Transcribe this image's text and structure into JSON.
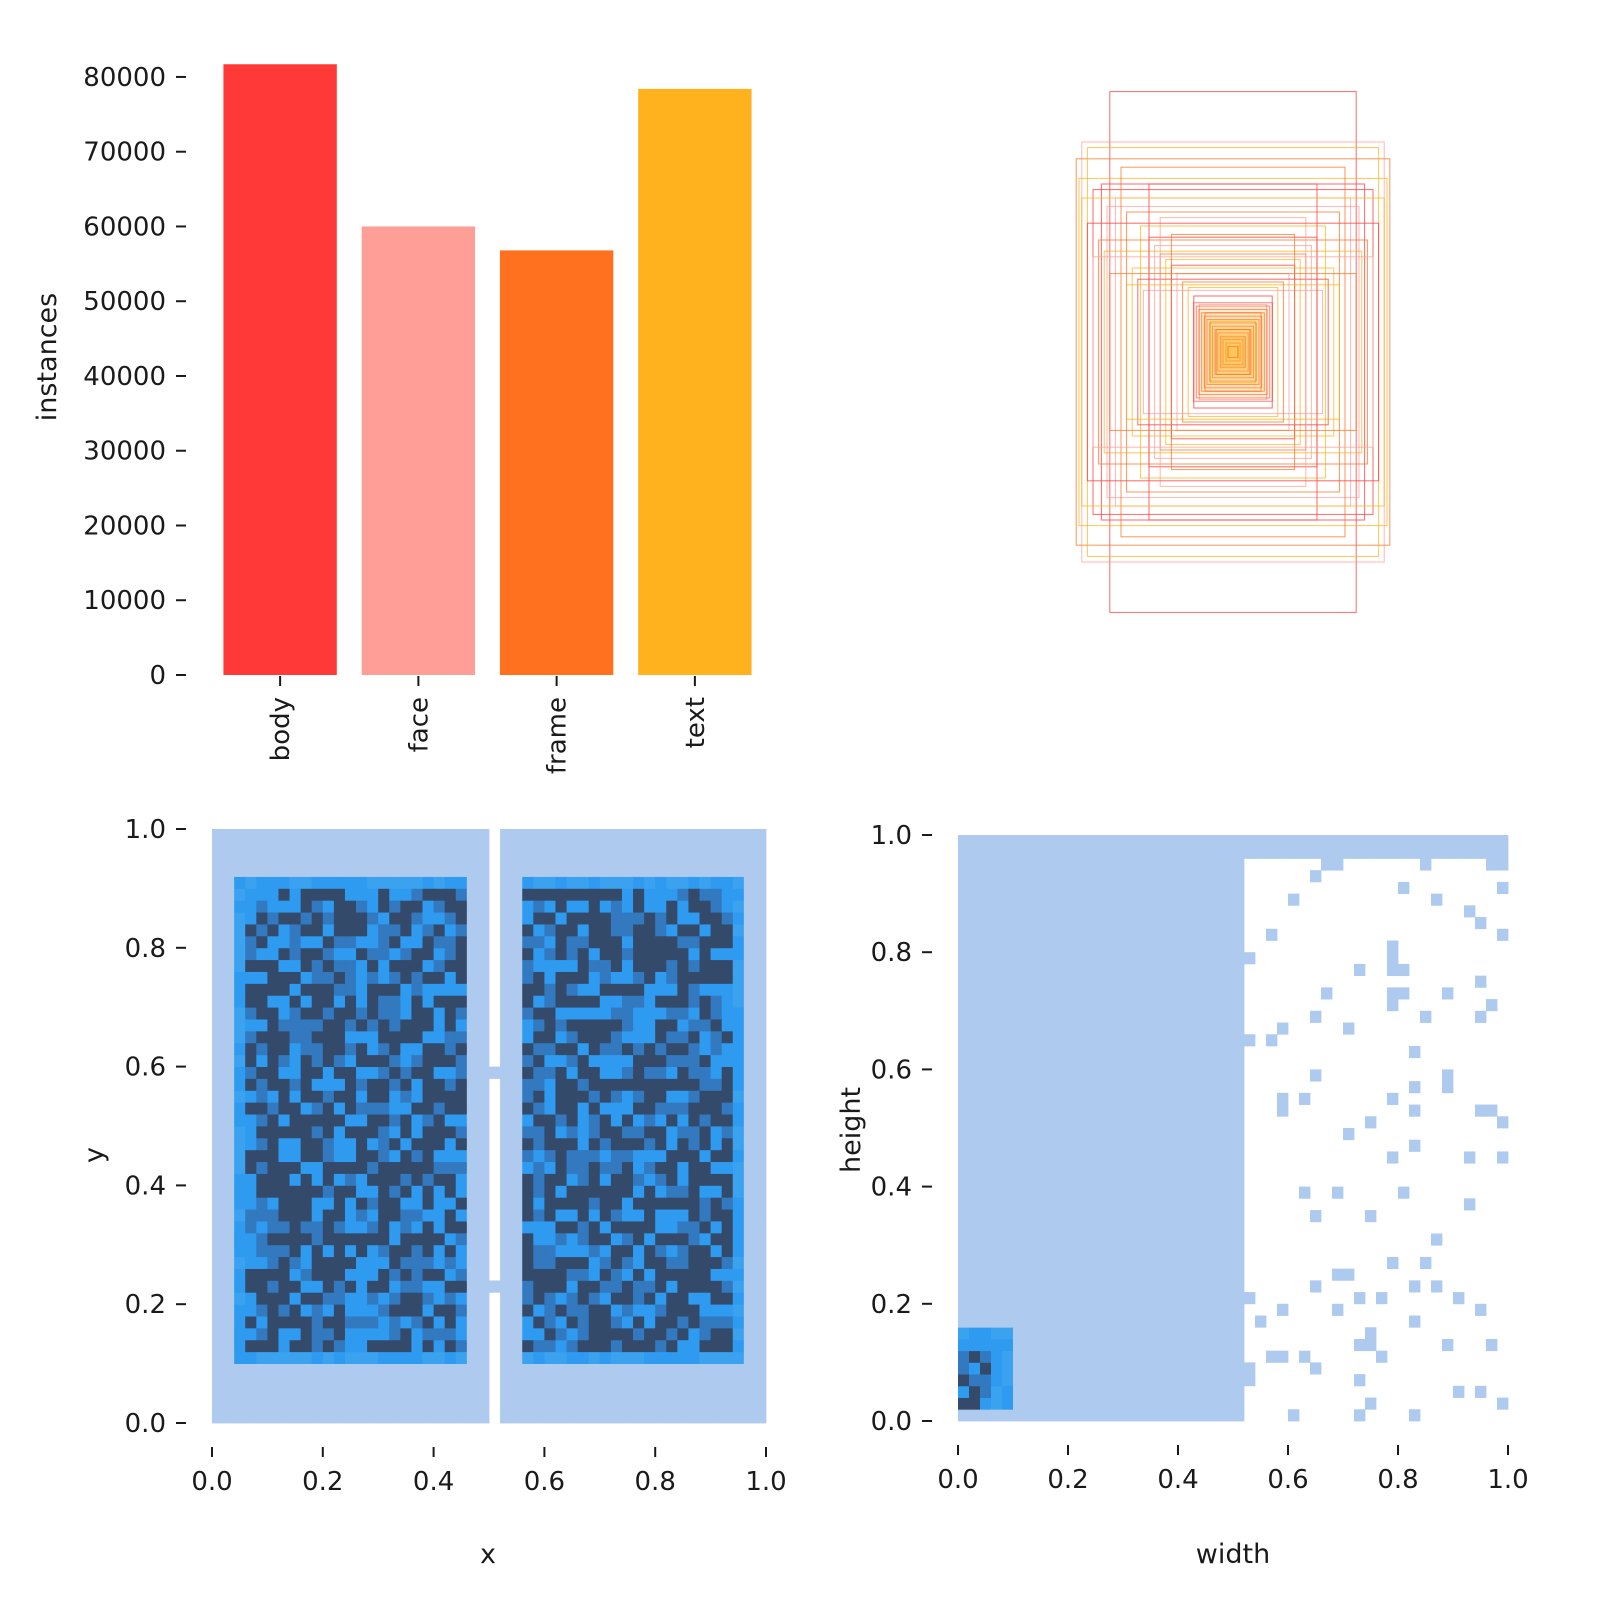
{
  "chart_data": [
    {
      "id": "instances",
      "type": "bar",
      "categories": [
        "body",
        "face",
        "frame",
        "text"
      ],
      "values": [
        81700,
        60000,
        56800,
        78400
      ],
      "colors": [
        "#FF3838",
        "#FF9D97",
        "#FF701F",
        "#FFB21D"
      ],
      "xlabel": "",
      "ylabel": "instances",
      "ylim": [
        0,
        82000
      ],
      "yticks": [
        0,
        10000,
        20000,
        30000,
        40000,
        50000,
        60000,
        70000,
        80000
      ],
      "ytick_labels": [
        "0",
        "10000",
        "20000",
        "30000",
        "40000",
        "50000",
        "60000",
        "70000",
        "80000"
      ],
      "grid": false
    },
    {
      "id": "box-overlay",
      "type": "scatter",
      "description_of_marks": "overlaid centered bounding rectangles (width, height) in class colors",
      "boxes": [
        [
          0.44,
          0.93
        ],
        [
          0.54,
          0.75
        ],
        [
          0.56,
          0.69
        ],
        [
          0.52,
          0.73
        ],
        [
          0.47,
          0.6
        ],
        [
          0.42,
          0.55
        ],
        [
          0.38,
          0.5
        ],
        [
          0.33,
          0.45
        ],
        [
          0.3,
          0.41
        ],
        [
          0.28,
          0.38
        ],
        [
          0.26,
          0.35
        ],
        [
          0.24,
          0.33
        ],
        [
          0.22,
          0.31
        ],
        [
          0.2,
          0.28
        ],
        [
          0.18,
          0.25
        ],
        [
          0.16,
          0.23
        ],
        [
          0.14,
          0.2
        ],
        [
          0.12,
          0.17
        ],
        [
          0.1,
          0.14
        ],
        [
          0.08,
          0.11
        ],
        [
          0.06,
          0.08
        ],
        [
          0.04,
          0.05
        ],
        [
          0.02,
          0.02
        ],
        [
          0.55,
          0.62
        ],
        [
          0.5,
          0.58
        ],
        [
          0.45,
          0.52
        ],
        [
          0.4,
          0.66
        ],
        [
          0.36,
          0.3
        ],
        [
          0.34,
          0.26
        ],
        [
          0.32,
          0.22
        ],
        [
          0.48,
          0.4
        ],
        [
          0.46,
          0.36
        ],
        [
          0.3,
          0.6
        ],
        [
          0.26,
          0.48
        ],
        [
          0.22,
          0.42
        ],
        [
          0.54,
          0.55
        ],
        [
          0.52,
          0.46
        ],
        [
          0.5,
          0.34
        ],
        [
          0.44,
          0.28
        ],
        [
          0.38,
          0.24
        ]
      ],
      "colors": [
        "#FF3838",
        "#FF9D97",
        "#FF701F",
        "#FFB21D"
      ]
    },
    {
      "id": "xy",
      "type": "heatmap",
      "xlabel": "x",
      "ylabel": "y",
      "xlim": [
        0,
        1
      ],
      "ylim": [
        0,
        1
      ],
      "xticks": [
        "0.0",
        "0.2",
        "0.4",
        "0.6",
        "0.8",
        "1.0"
      ],
      "yticks": [
        "0.0",
        "0.2",
        "0.4",
        "0.6",
        "0.8",
        "1.0"
      ],
      "color_scale": [
        "#AECBEF",
        "#2E9BF0",
        "#344A6A"
      ],
      "regions": [
        {
          "x": [
            0.0,
            0.5
          ],
          "y": [
            0.0,
            1.0
          ],
          "level": 1
        },
        {
          "x": [
            0.52,
            1.0
          ],
          "y": [
            0.0,
            1.0
          ],
          "level": 1
        },
        {
          "x": [
            0.04,
            0.45
          ],
          "y": [
            0.1,
            0.91
          ],
          "level": 2
        },
        {
          "x": [
            0.56,
            0.96
          ],
          "y": [
            0.1,
            0.91
          ],
          "level": 2
        },
        {
          "x": [
            0.06,
            0.45
          ],
          "y": [
            0.12,
            0.89
          ],
          "level": 3
        },
        {
          "x": [
            0.56,
            0.94
          ],
          "y": [
            0.12,
            0.89
          ],
          "level": 3
        }
      ]
    },
    {
      "id": "wh",
      "type": "heatmap",
      "xlabel": "width",
      "ylabel": "height",
      "xlim": [
        0,
        1
      ],
      "ylim": [
        0,
        1
      ],
      "xticks": [
        "0.0",
        "0.2",
        "0.4",
        "0.6",
        "0.8",
        "1.0"
      ],
      "yticks": [
        "0.0",
        "0.2",
        "0.4",
        "0.6",
        "0.8",
        "1.0"
      ],
      "color_scale": [
        "#AECBEF",
        "#2E9BF0",
        "#344A6A"
      ],
      "regions": [
        {
          "x": [
            0.0,
            0.52
          ],
          "y": [
            0.0,
            0.99
          ],
          "level": 1
        },
        {
          "x": [
            0.0,
            1.0
          ],
          "y": [
            0.97,
            0.99
          ],
          "level": 1
        },
        {
          "x": [
            0.0,
            0.1
          ],
          "y": [
            0.02,
            0.16
          ],
          "level": 2
        },
        {
          "x": [
            0.0,
            0.06
          ],
          "y": [
            0.02,
            0.12
          ],
          "level": 3
        }
      ]
    }
  ]
}
